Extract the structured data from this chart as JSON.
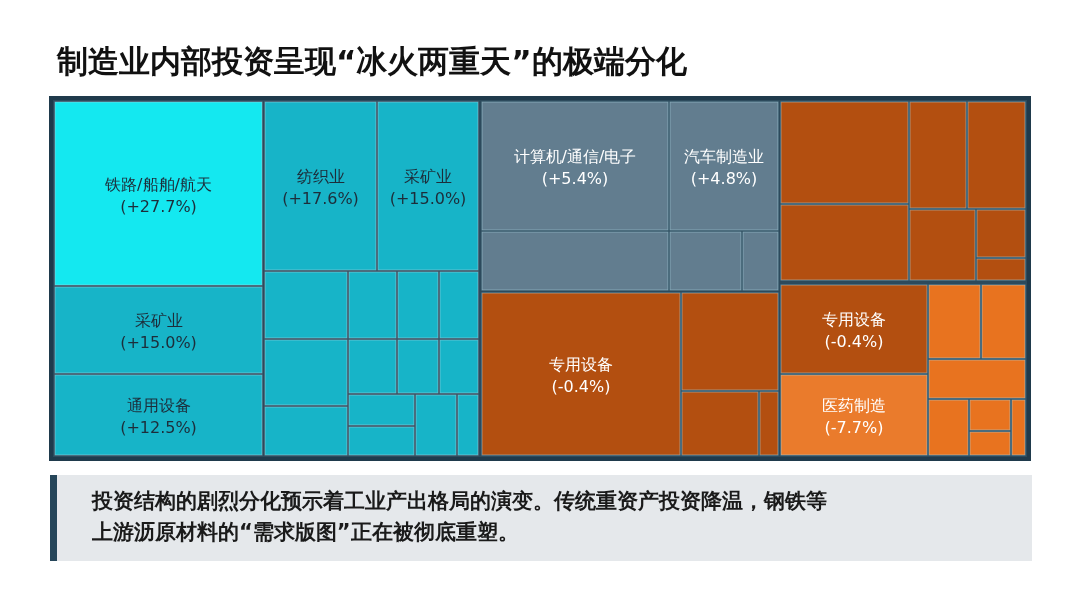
{
  "chart_data": {
    "type": "other",
    "title": "制造业内部投资呈现“冰火两重天”的极端分化",
    "categories": [
      "铁路/船舶/航天",
      "纺织业",
      "采矿业",
      "采矿业",
      "通用设备",
      "计算机/通信/电子",
      "汽车制造业",
      "专用设备",
      "专用设备",
      "医药制造"
    ],
    "values": [
      27.7,
      17.6,
      15.0,
      15.0,
      12.5,
      5.4,
      4.8,
      -0.4,
      -0.4,
      -7.7
    ],
    "value_labels": [
      "(+27.7%)",
      "(+17.6%)",
      "(+15.0%)",
      "(+15.0%)",
      "(+12.5%)",
      "(+5.4%)",
      "(+4.8%)",
      "(-0.4%)",
      "(-0.4%)",
      "(-7.7%)"
    ],
    "colors": [
      "#14e8f0",
      "#17b4c8",
      "#17b4c8",
      "#17b4c8",
      "#17b4c8",
      "#627d8f",
      "#627d8f",
      "#b34f10",
      "#b34f10",
      "#ea7b2c"
    ],
    "annotations": [
      "投资结构的剧烈分化预示着工业产出格局的演变。传统重资产投资降温，钢铁等",
      "上游沥原材料的“需求版图”正在被彻底重塑。"
    ]
  }
}
